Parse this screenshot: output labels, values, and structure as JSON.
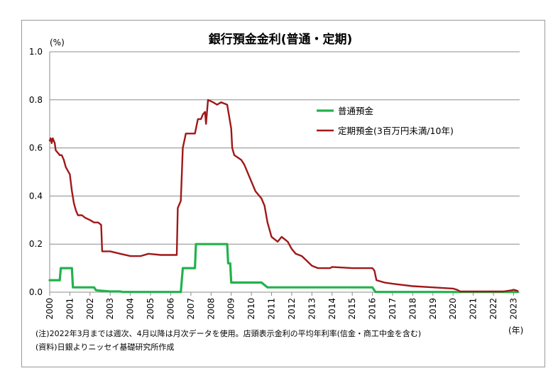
{
  "chart_data": {
    "type": "line",
    "title": "銀行預金金利(普通・定期)",
    "ylabel": "(%)",
    "xlabel": "(年)",
    "ylim": [
      0,
      1.0
    ],
    "yticks": [
      "1.0",
      "0.8",
      "0.6",
      "0.4",
      "0.2",
      "0.0"
    ],
    "xticks": [
      "2000",
      "2001",
      "2002",
      "2003",
      "2004",
      "2005",
      "2006",
      "2007",
      "2008",
      "2009",
      "2010",
      "2011",
      "2012",
      "2013",
      "2014",
      "2015",
      "2016",
      "2017",
      "2018",
      "2019",
      "2020",
      "2021",
      "2022",
      "2023"
    ],
    "grid": true,
    "legend_position": "upper-right",
    "series": [
      {
        "name": "普通預金",
        "color": "#22b24c",
        "points": [
          [
            2000.0,
            0.05
          ],
          [
            2000.5,
            0.05
          ],
          [
            2000.55,
            0.1
          ],
          [
            2001.1,
            0.1
          ],
          [
            2001.15,
            0.02
          ],
          [
            2002.2,
            0.02
          ],
          [
            2002.3,
            0.008
          ],
          [
            2003.0,
            0.003
          ],
          [
            2003.5,
            0.003
          ],
          [
            2003.6,
            0.001
          ],
          [
            2006.5,
            0.001
          ],
          [
            2006.6,
            0.1
          ],
          [
            2007.2,
            0.1
          ],
          [
            2007.25,
            0.2
          ],
          [
            2008.8,
            0.2
          ],
          [
            2008.85,
            0.12
          ],
          [
            2008.95,
            0.12
          ],
          [
            2009.0,
            0.04
          ],
          [
            2010.5,
            0.04
          ],
          [
            2010.8,
            0.02
          ],
          [
            2016.0,
            0.02
          ],
          [
            2016.15,
            0.001
          ],
          [
            2023.2,
            0.001
          ]
        ]
      },
      {
        "name": "定期預金(3百万円未満/10年)",
        "color": "#a01818",
        "points": [
          [
            2000.0,
            0.63
          ],
          [
            2000.05,
            0.64
          ],
          [
            2000.1,
            0.62
          ],
          [
            2000.15,
            0.64
          ],
          [
            2000.2,
            0.63
          ],
          [
            2000.25,
            0.62
          ],
          [
            2000.3,
            0.59
          ],
          [
            2000.4,
            0.58
          ],
          [
            2000.5,
            0.57
          ],
          [
            2000.6,
            0.57
          ],
          [
            2000.7,
            0.55
          ],
          [
            2000.8,
            0.52
          ],
          [
            2001.0,
            0.49
          ],
          [
            2001.1,
            0.42
          ],
          [
            2001.2,
            0.37
          ],
          [
            2001.3,
            0.34
          ],
          [
            2001.4,
            0.32
          ],
          [
            2001.6,
            0.32
          ],
          [
            2001.75,
            0.31
          ],
          [
            2002.0,
            0.3
          ],
          [
            2002.2,
            0.29
          ],
          [
            2002.4,
            0.29
          ],
          [
            2002.55,
            0.28
          ],
          [
            2002.6,
            0.17
          ],
          [
            2003.0,
            0.17
          ],
          [
            2003.5,
            0.16
          ],
          [
            2004.0,
            0.15
          ],
          [
            2004.5,
            0.15
          ],
          [
            2004.9,
            0.16
          ],
          [
            2005.5,
            0.155
          ],
          [
            2006.0,
            0.155
          ],
          [
            2006.3,
            0.155
          ],
          [
            2006.35,
            0.35
          ],
          [
            2006.5,
            0.38
          ],
          [
            2006.6,
            0.6
          ],
          [
            2006.75,
            0.66
          ],
          [
            2007.2,
            0.66
          ],
          [
            2007.35,
            0.72
          ],
          [
            2007.5,
            0.72
          ],
          [
            2007.6,
            0.74
          ],
          [
            2007.7,
            0.75
          ],
          [
            2007.75,
            0.7
          ],
          [
            2007.85,
            0.8
          ],
          [
            2008.1,
            0.79
          ],
          [
            2008.3,
            0.78
          ],
          [
            2008.5,
            0.79
          ],
          [
            2008.8,
            0.78
          ],
          [
            2009.0,
            0.68
          ],
          [
            2009.05,
            0.6
          ],
          [
            2009.15,
            0.57
          ],
          [
            2009.5,
            0.55
          ],
          [
            2009.65,
            0.53
          ],
          [
            2009.9,
            0.48
          ],
          [
            2010.2,
            0.42
          ],
          [
            2010.5,
            0.39
          ],
          [
            2010.65,
            0.36
          ],
          [
            2010.8,
            0.29
          ],
          [
            2011.0,
            0.23
          ],
          [
            2011.3,
            0.21
          ],
          [
            2011.5,
            0.23
          ],
          [
            2011.8,
            0.21
          ],
          [
            2012.0,
            0.18
          ],
          [
            2012.2,
            0.16
          ],
          [
            2012.5,
            0.15
          ],
          [
            2012.75,
            0.13
          ],
          [
            2013.0,
            0.11
          ],
          [
            2013.3,
            0.1
          ],
          [
            2013.9,
            0.1
          ],
          [
            2014.0,
            0.105
          ],
          [
            2015.0,
            0.1
          ],
          [
            2016.0,
            0.1
          ],
          [
            2016.1,
            0.09
          ],
          [
            2016.2,
            0.05
          ],
          [
            2016.6,
            0.04
          ],
          [
            2017.0,
            0.035
          ],
          [
            2017.5,
            0.03
          ],
          [
            2018.0,
            0.025
          ],
          [
            2019.0,
            0.02
          ],
          [
            2020.0,
            0.015
          ],
          [
            2020.2,
            0.01
          ],
          [
            2020.35,
            0.003
          ],
          [
            2022.5,
            0.003
          ],
          [
            2022.9,
            0.008
          ],
          [
            2023.0,
            0.01
          ],
          [
            2023.1,
            0.008
          ],
          [
            2023.2,
            0.005
          ]
        ]
      }
    ],
    "notes": [
      "(注)2022年3月までは週次、4月以降は月次データを使用。店頭表示金利の平均年利率(信金・商工中金を含む)",
      "(資料)日銀よりニッセイ基礎研究所作成"
    ]
  }
}
